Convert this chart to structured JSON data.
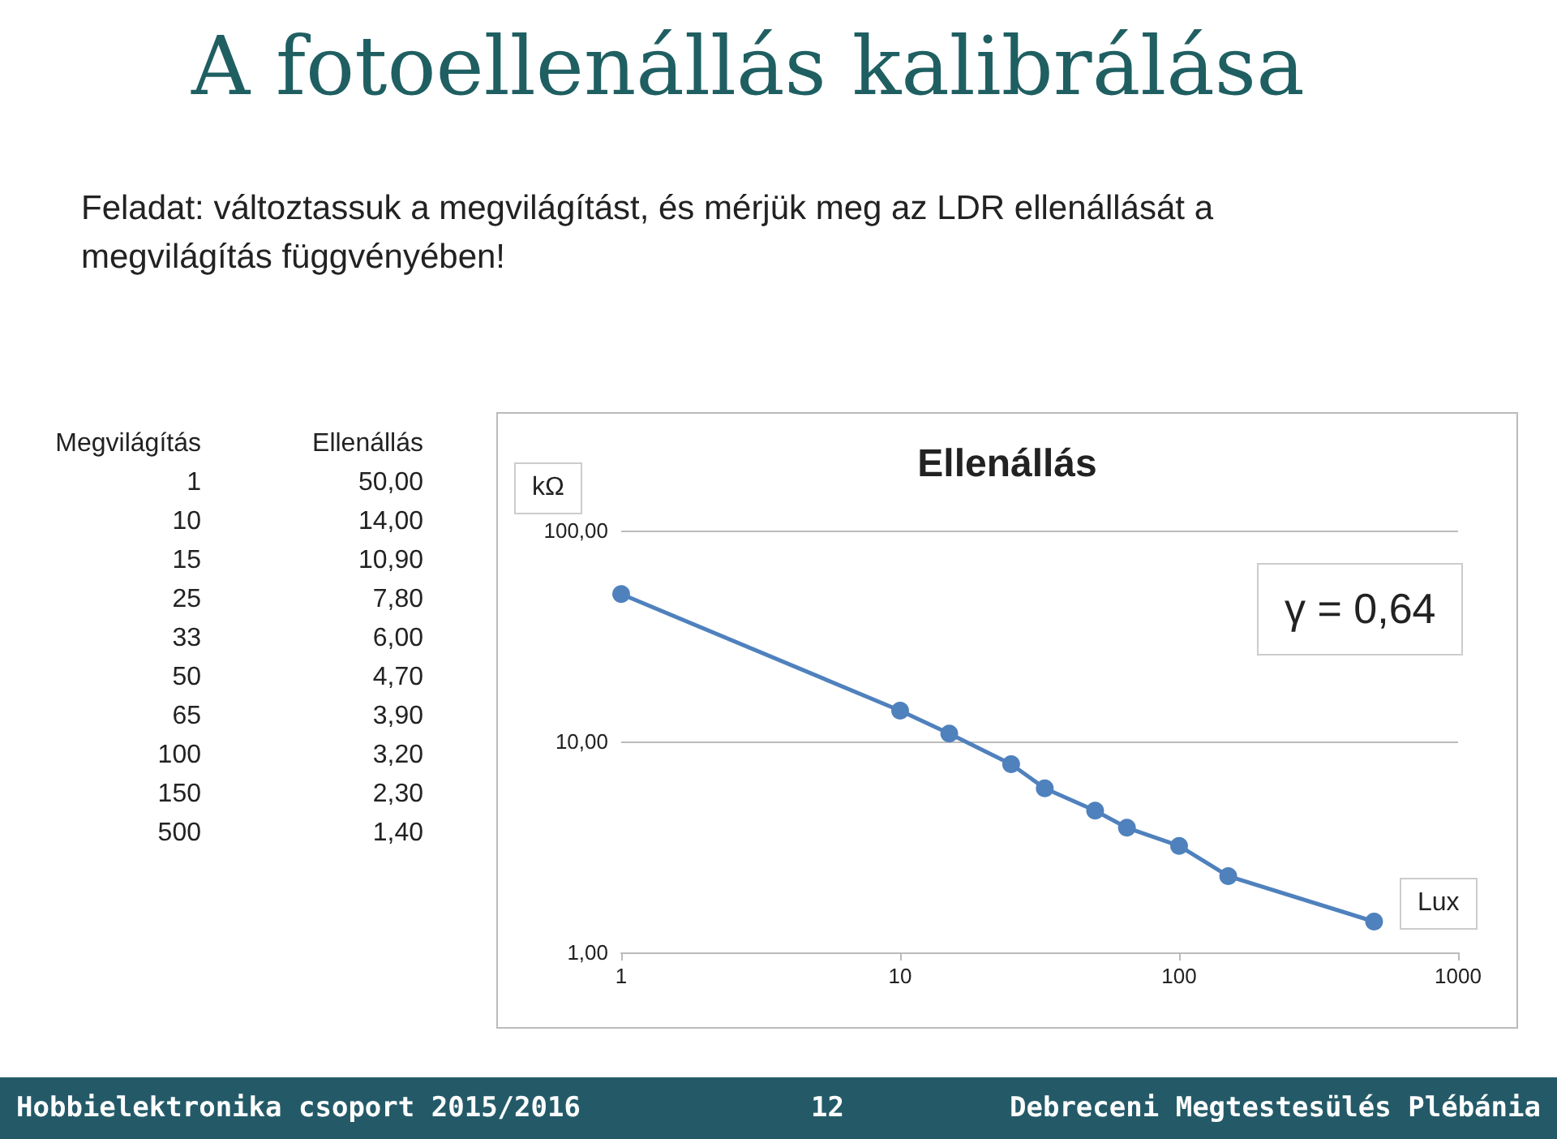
{
  "chart_data": [
    {
      "type": "other",
      "annotations": [
        "Megvilágítás",
        "Ellenállás",
        "1",
        "50,00",
        "10",
        "14,00",
        "15",
        "10,90",
        "25",
        "7,80",
        "33",
        "6,00",
        "50",
        "4,70",
        "65",
        "3,90",
        "100",
        "3,20",
        "150",
        "2,30",
        "500",
        "1,40"
      ]
    },
    {
      "type": "line",
      "title": "A fotoellenállás kalibrálása",
      "subtitle": "Feladat: változtassuk a megvilágítást, és mérjük meg az LDR ellenállását a megvilágítás függvényében!",
      "xlabel": "Lux",
      "ylabel": "kΩ",
      "x": [
        1,
        10,
        15,
        25,
        33,
        50,
        65,
        100,
        150,
        500
      ],
      "series": [
        {
          "color": "#4f81bd",
          "values": [
            50,
            14,
            10.9,
            7.8,
            6,
            4.7,
            3.9,
            3.2,
            2.3,
            1.4
          ]
        }
      ],
      "xlim": [
        1,
        1000
      ],
      "xticks": [
        1,
        10,
        100,
        1000
      ],
      "ylim": [
        1,
        100
      ],
      "yticks": [
        {
          "value": 1,
          "label": "1,00"
        },
        {
          "value": 10,
          "label": "10,00"
        },
        {
          "value": 100,
          "label": "100,00"
        }
      ],
      "log": "xy",
      "grid": "y",
      "marker": "circle",
      "line_style": "solid",
      "annotations": [
        "Ellenállás",
        "γ = 0,64",
        "Hobbielektronika csoport 2015/2016",
        "12",
        "Debreceni Megtestesülés Plébánia"
      ]
    }
  ]
}
